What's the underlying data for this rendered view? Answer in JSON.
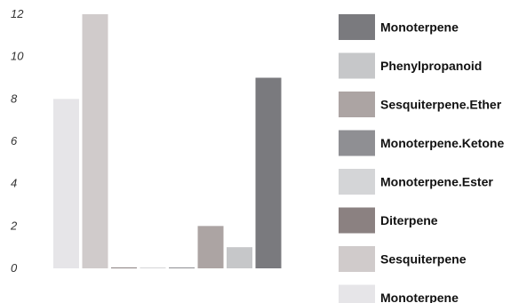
{
  "chart_data": {
    "type": "bar",
    "categories": [],
    "ylim": [
      0,
      12
    ],
    "yticks": [
      0,
      2,
      4,
      6,
      8,
      10,
      12
    ],
    "grid": false,
    "legend_position": "right",
    "series": [
      {
        "name": "Monoterpene",
        "value": 8,
        "color": "#e6e5e8"
      },
      {
        "name": "Sesquiterpene",
        "value": 12,
        "color": "#d0cbcb"
      },
      {
        "name": "Diterpene",
        "value": 0,
        "color": "#8b8181"
      },
      {
        "name": "Monoterpene.Ester",
        "value": 0,
        "color": "#d4d5d7"
      },
      {
        "name": "Monoterpene.Ketone",
        "value": 0,
        "color": "#8f8f93"
      },
      {
        "name": "Sesquiterpene.Ether",
        "value": 2,
        "color": "#aca4a3"
      },
      {
        "name": "Phenylpropanoid",
        "value": 1,
        "color": "#c6c7c9"
      },
      {
        "name": "Monoterpene",
        "value": 9,
        "color": "#7a7a7e"
      }
    ]
  }
}
